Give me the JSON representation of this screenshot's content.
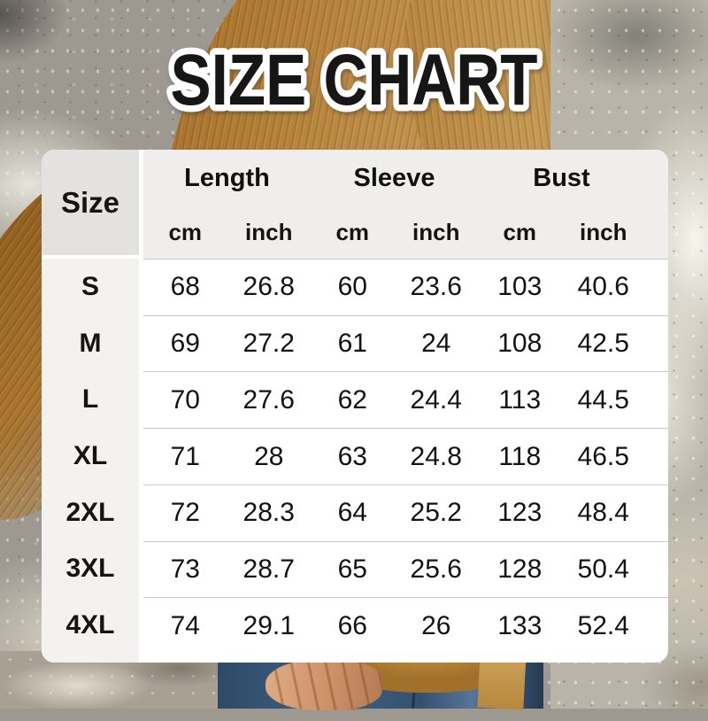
{
  "title": "SIZE CHART",
  "table": {
    "corner_label": "Size",
    "groups": [
      "Length",
      "Sleeve",
      "Bust"
    ],
    "units": [
      "cm",
      "inch",
      "cm",
      "inch",
      "cm",
      "inch"
    ],
    "rows": [
      {
        "size": "S",
        "values": [
          "68",
          "26.8",
          "60",
          "23.6",
          "103",
          "40.6"
        ]
      },
      {
        "size": "M",
        "values": [
          "69",
          "27.2",
          "61",
          "24",
          "108",
          "42.5"
        ]
      },
      {
        "size": "L",
        "values": [
          "70",
          "27.6",
          "62",
          "24.4",
          "113",
          "44.5"
        ]
      },
      {
        "size": "XL",
        "values": [
          "71",
          "28",
          "63",
          "24.8",
          "118",
          "46.5"
        ]
      },
      {
        "size": "2XL",
        "values": [
          "72",
          "28.3",
          "64",
          "25.2",
          "123",
          "48.4"
        ]
      },
      {
        "size": "3XL",
        "values": [
          "73",
          "28.7",
          "65",
          "25.6",
          "128",
          "50.4"
        ]
      },
      {
        "size": "4XL",
        "values": [
          "74",
          "29.1",
          "66",
          "26",
          "133",
          "52.4"
        ]
      }
    ]
  },
  "chart_data": {
    "type": "table",
    "title": "SIZE CHART",
    "columns": [
      "Size",
      "Length cm",
      "Length inch",
      "Sleeve cm",
      "Sleeve inch",
      "Bust cm",
      "Bust inch"
    ],
    "rows": [
      [
        "S",
        68,
        26.8,
        60,
        23.6,
        103,
        40.6
      ],
      [
        "M",
        69,
        27.2,
        61,
        24,
        108,
        42.5
      ],
      [
        "L",
        70,
        27.6,
        62,
        24.4,
        113,
        44.5
      ],
      [
        "XL",
        71,
        28,
        63,
        24.8,
        118,
        46.5
      ],
      [
        "2XL",
        72,
        28.3,
        64,
        25.2,
        123,
        48.4
      ],
      [
        "3XL",
        73,
        28.7,
        65,
        25.6,
        128,
        50.4
      ],
      [
        "4XL",
        74,
        29.1,
        66,
        26,
        133,
        52.4
      ]
    ]
  },
  "colors": {
    "title_fill": "#161616",
    "title_outline": "#ffffff",
    "table_bg": "#ffffff",
    "header_bg": "#efeeec",
    "size_header_bg": "#e3e2e0",
    "size_column_bg": "#f3f2f1",
    "row_divider": "#c9c9c9",
    "sweater_brown": "#b07c36",
    "wall_gray": "#9d9890",
    "denim_blue": "#3a5674",
    "skin_tone": "#cf9672",
    "hair_tan": "#c49a52"
  }
}
